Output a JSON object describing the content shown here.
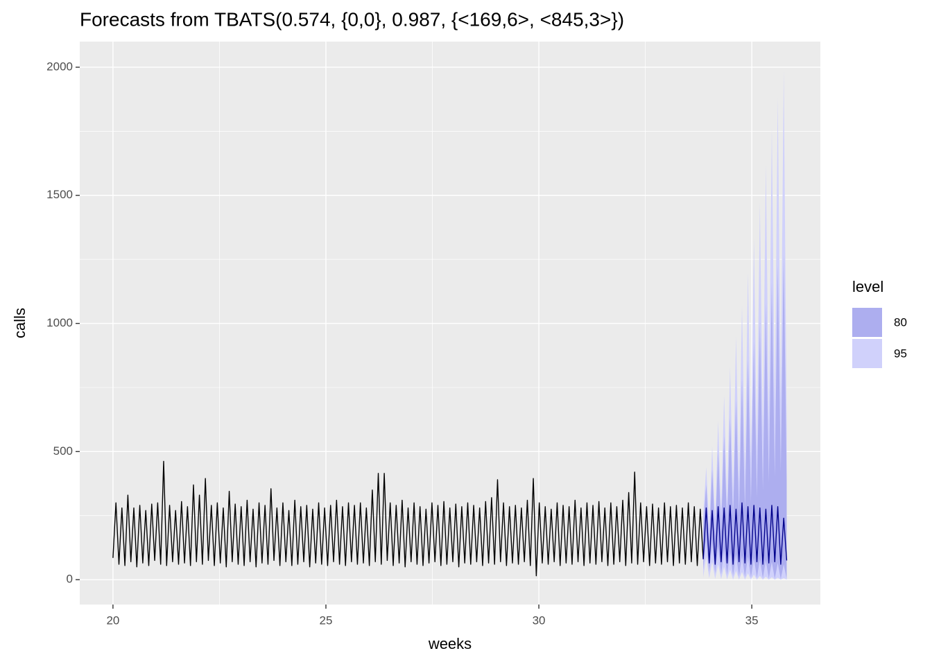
{
  "chart_data": {
    "type": "line",
    "title": "Forecasts from TBATS(0.574, {0,0}, 0.987, {<169,6>, <845,3>})",
    "x_label": "weeks",
    "y_label": "calls",
    "xlim": [
      19.22,
      36.61
    ],
    "ylim": [
      -97,
      2100
    ],
    "xticks": [
      20,
      25,
      30,
      35
    ],
    "yticks": [
      0,
      500,
      1000,
      1500,
      2000
    ],
    "xminor": [
      22.5,
      27.5,
      32.5
    ],
    "yminor": [
      250,
      750,
      1250,
      1750
    ],
    "grid": true,
    "x": [
      20,
      20.07,
      20.14,
      20.21,
      20.28,
      20.35,
      20.42,
      20.49,
      20.56,
      20.63,
      20.7,
      20.77,
      20.84,
      20.91,
      20.98,
      21.05,
      21.12,
      21.19,
      21.26,
      21.33,
      21.4,
      21.47,
      21.54,
      21.61,
      21.68,
      21.75,
      21.82,
      21.89,
      21.96,
      22.03,
      22.1,
      22.17,
      22.24,
      22.31,
      22.38,
      22.45,
      22.52,
      22.59,
      22.66,
      22.73,
      22.8,
      22.87,
      22.94,
      23.01,
      23.08,
      23.15,
      23.22,
      23.29,
      23.36,
      23.43,
      23.5,
      23.57,
      23.64,
      23.71,
      23.78,
      23.85,
      23.92,
      23.99,
      24.06,
      24.13,
      24.2,
      24.27,
      24.34,
      24.41,
      24.48,
      24.55,
      24.62,
      24.69,
      24.76,
      24.83,
      24.9,
      24.97,
      25.04,
      25.11,
      25.18,
      25.25,
      25.32,
      25.39,
      25.46,
      25.53,
      25.6,
      25.67,
      25.74,
      25.81,
      25.88,
      25.95,
      26.02,
      26.09,
      26.16,
      26.23,
      26.3,
      26.37,
      26.44,
      26.51,
      26.58,
      26.65,
      26.72,
      26.79,
      26.86,
      26.93,
      27,
      27.07,
      27.14,
      27.21,
      27.28,
      27.35,
      27.42,
      27.49,
      27.56,
      27.63,
      27.7,
      27.77,
      27.84,
      27.91,
      27.98,
      28.05,
      28.12,
      28.19,
      28.26,
      28.33,
      28.4,
      28.47,
      28.54,
      28.61,
      28.68,
      28.75,
      28.82,
      28.89,
      28.96,
      29.03,
      29.1,
      29.17,
      29.24,
      29.31,
      29.38,
      29.45,
      29.52,
      29.59,
      29.66,
      29.73,
      29.8,
      29.87,
      29.94,
      30.01,
      30.08,
      30.15,
      30.22,
      30.29,
      30.36,
      30.43,
      30.5,
      30.57,
      30.64,
      30.71,
      30.78,
      30.85,
      30.92,
      30.99,
      31.06,
      31.13,
      31.2,
      31.27,
      31.34,
      31.41,
      31.48,
      31.55,
      31.62,
      31.69,
      31.76,
      31.83,
      31.9,
      31.97,
      32.04,
      32.11,
      32.18,
      32.25,
      32.32,
      32.39,
      32.46,
      32.53,
      32.6,
      32.67,
      32.74,
      32.81,
      32.88,
      32.95,
      33.02,
      33.09,
      33.16,
      33.23,
      33.3,
      33.37,
      33.44,
      33.51,
      33.58,
      33.65,
      33.72,
      33.79,
      33.86
    ],
    "values": [
      85,
      300,
      60,
      280,
      55,
      330,
      70,
      280,
      50,
      290,
      65,
      270,
      55,
      295,
      75,
      300,
      60,
      462,
      55,
      290,
      70,
      270,
      60,
      305,
      65,
      285,
      55,
      370,
      70,
      330,
      60,
      395,
      75,
      290,
      55,
      300,
      65,
      280,
      50,
      345,
      70,
      295,
      60,
      285,
      55,
      310,
      70,
      275,
      50,
      300,
      65,
      290,
      60,
      355,
      75,
      280,
      55,
      300,
      70,
      270,
      55,
      310,
      60,
      285,
      70,
      290,
      50,
      275,
      65,
      300,
      60,
      280,
      55,
      290,
      70,
      310,
      60,
      285,
      55,
      300,
      70,
      290,
      60,
      300,
      65,
      280,
      55,
      350,
      70,
      415,
      60,
      415,
      75,
      300,
      55,
      290,
      65,
      310,
      50,
      280,
      70,
      300,
      60,
      285,
      55,
      275,
      65,
      300,
      70,
      290,
      55,
      305,
      60,
      280,
      70,
      295,
      50,
      285,
      65,
      300,
      60,
      290,
      70,
      280,
      55,
      305,
      65,
      320,
      60,
      390,
      70,
      300,
      55,
      285,
      65,
      290,
      60,
      280,
      70,
      310,
      55,
      395,
      15,
      300,
      65,
      285,
      60,
      275,
      70,
      300,
      55,
      290,
      65,
      285,
      60,
      310,
      70,
      280,
      55,
      300,
      65,
      290,
      60,
      305,
      70,
      280,
      55,
      300,
      60,
      285,
      70,
      310,
      55,
      340,
      65,
      420,
      60,
      300,
      70,
      285,
      55,
      295,
      65,
      280,
      60,
      300,
      70,
      285,
      55,
      290,
      65,
      280,
      60,
      300,
      70,
      285,
      55,
      275,
      80
    ],
    "color": "#000000",
    "forecast": {
      "color": "#00008b",
      "x": [
        33.86,
        33.93,
        34,
        34.07,
        34.14,
        34.21,
        34.28,
        34.35,
        34.42,
        34.49,
        34.56,
        34.63,
        34.7,
        34.77,
        34.84,
        34.91,
        34.98,
        35.05,
        35.12,
        35.19,
        35.26,
        35.33,
        35.4,
        35.47,
        35.54,
        35.61,
        35.68,
        35.75,
        35.82
      ],
      "values": [
        80,
        280,
        65,
        270,
        60,
        285,
        70,
        280,
        65,
        290,
        60,
        275,
        70,
        300,
        65,
        285,
        60,
        290,
        70,
        280,
        60,
        275,
        65,
        290,
        70,
        285,
        60,
        240,
        75
      ]
    },
    "legend_title": "level",
    "intervals": [
      {
        "name": "80",
        "color": "#adaeef",
        "upper": [
          200,
          370,
          150,
          430,
          170,
          500,
          190,
          560,
          210,
          630,
          230,
          700,
          250,
          780,
          270,
          860,
          300,
          930,
          320,
          1000,
          350,
          1080,
          380,
          1160,
          400,
          1230,
          420,
          1270,
          380
        ],
        "lower": [
          40,
          160,
          30,
          140,
          25,
          130,
          20,
          120,
          18,
          110,
          15,
          100,
          12,
          95,
          10,
          90,
          8,
          85,
          6,
          80,
          5,
          75,
          4,
          70,
          3,
          65,
          2,
          60,
          2
        ]
      },
      {
        "name": "95",
        "color": "#d0d1fb",
        "upper": [
          250,
          440,
          200,
          520,
          230,
          620,
          270,
          720,
          300,
          830,
          340,
          950,
          380,
          1070,
          420,
          1200,
          470,
          1330,
          520,
          1470,
          570,
          1620,
          620,
          1760,
          670,
          1880,
          700,
          1990,
          600
        ],
        "lower": [
          10,
          90,
          5,
          70,
          3,
          60,
          2,
          50,
          1,
          40,
          0,
          35,
          0,
          30,
          0,
          25,
          0,
          20,
          0,
          15,
          0,
          12,
          0,
          10,
          0,
          8,
          0,
          6,
          0
        ]
      }
    ]
  }
}
